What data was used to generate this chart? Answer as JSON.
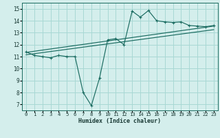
{
  "xlabel": "Humidex (Indice chaleur)",
  "ylabel": "",
  "bg_color": "#d4eeec",
  "grid_color": "#a8d8d4",
  "line_color": "#1a6b60",
  "xlim": [
    -0.5,
    23.5
  ],
  "ylim": [
    6.5,
    15.5
  ],
  "xticks": [
    0,
    1,
    2,
    3,
    4,
    5,
    6,
    7,
    8,
    9,
    10,
    11,
    12,
    13,
    14,
    15,
    16,
    17,
    18,
    19,
    20,
    21,
    22,
    23
  ],
  "yticks": [
    7,
    8,
    9,
    10,
    11,
    12,
    13,
    14,
    15
  ],
  "line1_x": [
    0,
    1,
    2,
    3,
    4,
    5,
    6,
    7,
    8,
    9,
    10,
    11,
    12,
    13,
    14,
    15,
    16,
    17,
    18,
    19,
    20,
    21,
    22,
    23
  ],
  "line1_y": [
    11.4,
    11.1,
    11.0,
    10.9,
    11.1,
    11.0,
    11.0,
    8.0,
    6.9,
    9.2,
    12.4,
    12.5,
    12.0,
    14.8,
    14.3,
    14.85,
    14.0,
    13.9,
    13.85,
    13.9,
    13.6,
    13.55,
    13.5,
    13.6
  ],
  "line2_x": [
    0,
    23
  ],
  "line2_y": [
    11.15,
    13.25
  ],
  "line3_x": [
    0,
    23
  ],
  "line3_y": [
    11.35,
    13.55
  ],
  "tick_fontsize": 5.2,
  "xlabel_fontsize": 6.0
}
